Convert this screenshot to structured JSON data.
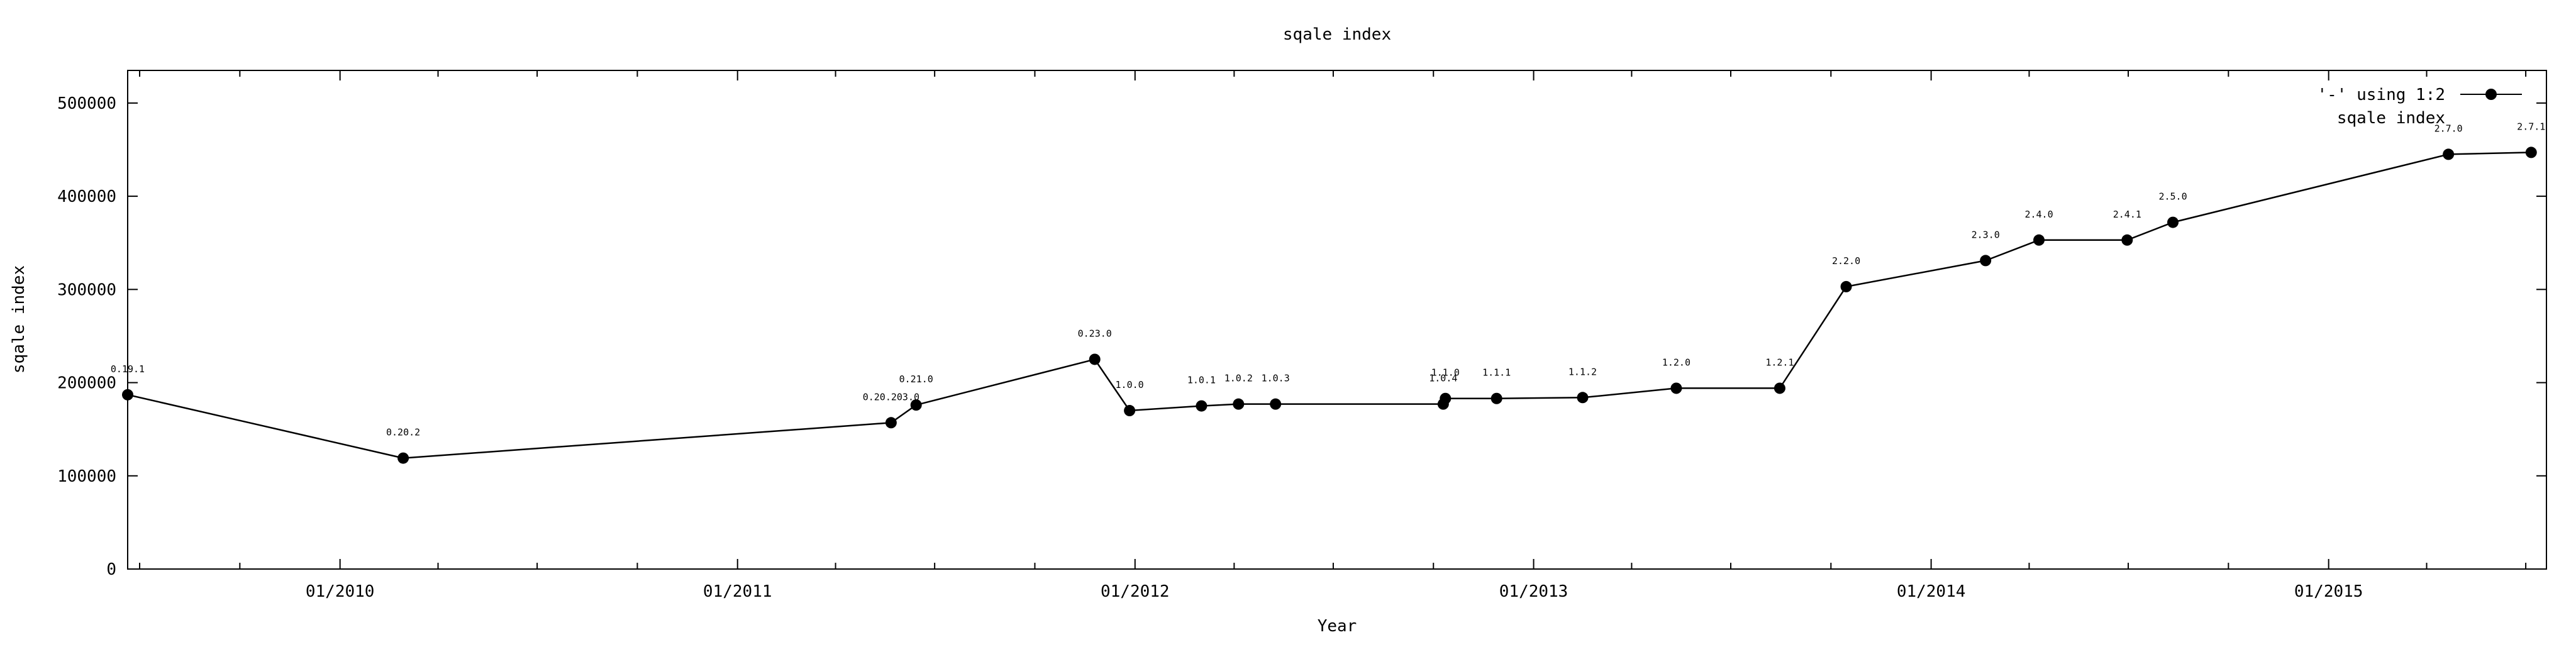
{
  "chart_data": {
    "type": "line",
    "title": "sqale index",
    "xlabel": "Year",
    "ylabel": "sqale index",
    "x_range": [
      "2009-06-20",
      "2015-07-20"
    ],
    "ylim": [
      0,
      535000
    ],
    "y_ticks": [
      0,
      100000,
      200000,
      300000,
      400000,
      500000
    ],
    "x_tick_labels": [
      {
        "date": "2010-01-01",
        "label": "01/2010"
      },
      {
        "date": "2011-01-01",
        "label": "01/2011"
      },
      {
        "date": "2012-01-01",
        "label": "01/2012"
      },
      {
        "date": "2013-01-01",
        "label": "01/2013"
      },
      {
        "date": "2014-01-01",
        "label": "01/2014"
      },
      {
        "date": "2015-01-01",
        "label": "01/2015"
      }
    ],
    "grid": false,
    "legend": {
      "position": "top-right",
      "lines": [
        "'-' using 1:2",
        "sqale index"
      ]
    },
    "series": [
      {
        "points": [
          {
            "date": "2009-06-20",
            "value": 187000,
            "label": "0.19.1"
          },
          {
            "date": "2010-02-28",
            "value": 119000,
            "label": "0.20.2"
          },
          {
            "date": "2011-05-22",
            "value": 157000,
            "label": "0.20.203.0"
          },
          {
            "date": "2011-06-14",
            "value": 176000,
            "label": "0.21.0"
          },
          {
            "date": "2011-11-25",
            "value": 225000,
            "label": "0.23.0"
          },
          {
            "date": "2011-12-27",
            "value": 170000,
            "label": "1.0.0"
          },
          {
            "date": "2012-03-02",
            "value": 175000,
            "label": "1.0.1"
          },
          {
            "date": "2012-04-05",
            "value": 177000,
            "label": "1.0.2"
          },
          {
            "date": "2012-05-09",
            "value": 177000,
            "label": "1.0.3"
          },
          {
            "date": "2012-10-10",
            "value": 177000,
            "label": "1.0.4"
          },
          {
            "date": "2012-10-12",
            "value": 183000,
            "label": "1.1.0"
          },
          {
            "date": "2012-11-28",
            "value": 183000,
            "label": "1.1.1"
          },
          {
            "date": "2013-02-15",
            "value": 184000,
            "label": "1.1.2"
          },
          {
            "date": "2013-05-12",
            "value": 194000,
            "label": "1.2.0"
          },
          {
            "date": "2013-08-15",
            "value": 194000,
            "label": "1.2.1"
          },
          {
            "date": "2013-10-15",
            "value": 303000,
            "label": "2.2.0"
          },
          {
            "date": "2014-02-20",
            "value": 331000,
            "label": "2.3.0"
          },
          {
            "date": "2014-04-10",
            "value": 353000,
            "label": "2.4.0"
          },
          {
            "date": "2014-06-30",
            "value": 353000,
            "label": "2.4.1"
          },
          {
            "date": "2014-08-11",
            "value": 372000,
            "label": "2.5.0"
          },
          {
            "date": "2015-04-21",
            "value": 445000,
            "label": "2.7.0"
          },
          {
            "date": "2015-07-06",
            "value": 447000,
            "label": "2.7.1"
          }
        ]
      }
    ]
  }
}
